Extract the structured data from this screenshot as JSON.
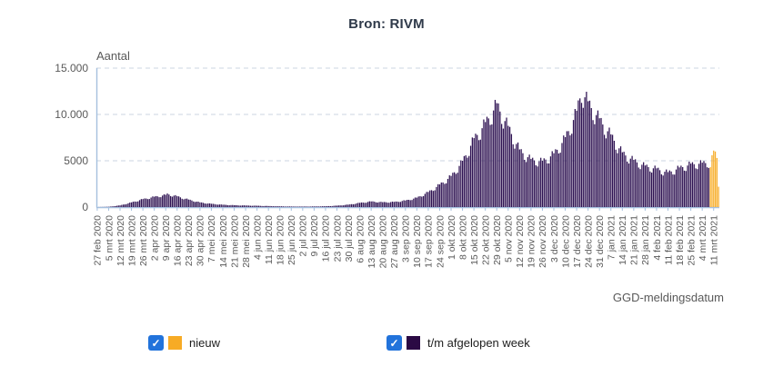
{
  "chart_data": {
    "type": "bar",
    "title": "Bron: RIVM",
    "ylabel": "Aantal",
    "xlabel": "GGD-meldingsdatum",
    "ylim": [
      0,
      15000
    ],
    "y_ticks": [
      0,
      5000,
      10000,
      15000
    ],
    "y_tick_labels": [
      "0",
      "5000",
      "10.000",
      "15.000"
    ],
    "x_tick_labels": [
      "27 feb 2020",
      "5 mrt 2020",
      "12 mrt 2020",
      "19 mrt 2020",
      "26 mrt 2020",
      "2 apr 2020",
      "9 apr 2020",
      "16 apr 2020",
      "23 apr 2020",
      "30 apr 2020",
      "7 mei 2020",
      "14 mei 2020",
      "21 mei 2020",
      "28 mei 2020",
      "4 jun 2020",
      "11 jun 2020",
      "18 jun 2020",
      "25 jun 2020",
      "2 jul 2020",
      "9 jul 2020",
      "16 jul 2020",
      "23 jul 2020",
      "30 jul 2020",
      "6 aug 2020",
      "13 aug 2020",
      "20 aug 2020",
      "27 aug 2020",
      "3 sep 2020",
      "10 sep 2020",
      "17 sep 2020",
      "24 sep 2020",
      "1 okt 2020",
      "8 okt 2020",
      "15 okt 2020",
      "22 okt 2020",
      "29 okt 2020",
      "5 nov 2020",
      "12 nov 2020",
      "19 nov 2020",
      "26 nov 2020",
      "3 dec 2020",
      "10 dec 2020",
      "17 dec 2020",
      "24 dec 2020",
      "31 dec 2020",
      "7 jan 2021",
      "14 jan 2021",
      "21 jan 2021",
      "28 jan 2021",
      "4 feb 2021",
      "11 feb 2021",
      "18 feb 2021",
      "25 feb 2021",
      "4 mrt 2021",
      "11 mrt 2021"
    ],
    "days_per_tick": 7,
    "total_days": 382,
    "grid": "horizontal-dashed",
    "legend_position": "bottom",
    "series": [
      {
        "name": "t/m afgelopen week",
        "color": "#2E1252",
        "anchor_points_day_value": [
          [
            0,
            1
          ],
          [
            7,
            30
          ],
          [
            14,
            180
          ],
          [
            21,
            500
          ],
          [
            28,
            850
          ],
          [
            35,
            1100
          ],
          [
            42,
            1300
          ],
          [
            43,
            1400
          ],
          [
            49,
            1150
          ],
          [
            56,
            800
          ],
          [
            63,
            500
          ],
          [
            70,
            350
          ],
          [
            77,
            250
          ],
          [
            84,
            200
          ],
          [
            91,
            170
          ],
          [
            98,
            140
          ],
          [
            105,
            110
          ],
          [
            112,
            80
          ],
          [
            119,
            60
          ],
          [
            126,
            55
          ],
          [
            133,
            65
          ],
          [
            140,
            90
          ],
          [
            147,
            150
          ],
          [
            154,
            260
          ],
          [
            161,
            450
          ],
          [
            168,
            600
          ],
          [
            175,
            520
          ],
          [
            182,
            550
          ],
          [
            189,
            700
          ],
          [
            196,
            1000
          ],
          [
            203,
            1600
          ],
          [
            210,
            2400
          ],
          [
            217,
            3300
          ],
          [
            224,
            4900
          ],
          [
            231,
            7300
          ],
          [
            238,
            9000
          ],
          [
            245,
            11000
          ],
          [
            252,
            8600
          ],
          [
            259,
            6100
          ],
          [
            266,
            5100
          ],
          [
            273,
            4900
          ],
          [
            280,
            5700
          ],
          [
            287,
            7400
          ],
          [
            294,
            10200
          ],
          [
            297,
            12500
          ],
          [
            301,
            11200
          ],
          [
            308,
            9400
          ],
          [
            315,
            7700
          ],
          [
            322,
            5800
          ],
          [
            329,
            5000
          ],
          [
            336,
            4400
          ],
          [
            343,
            4100
          ],
          [
            350,
            3700
          ],
          [
            357,
            4200
          ],
          [
            364,
            4600
          ],
          [
            371,
            4700
          ],
          [
            375,
            4800
          ]
        ],
        "weekday_modulation": [
          1.02,
          1.05,
          1.0,
          0.9,
          0.88,
          1.0,
          1.08
        ]
      },
      {
        "name": "nieuw",
        "color": "#F7AB25",
        "start_day": 376,
        "values": [
          4300,
          5600,
          6100,
          6000,
          5300,
          2200
        ]
      }
    ]
  },
  "legend": {
    "checkmark_glyph": "✓",
    "checkbox_color": "#2273DB",
    "items": [
      {
        "label": "nieuw",
        "checked": true,
        "swatch_color": "#F7AB25"
      },
      {
        "label": "t/m afgelopen week",
        "checked": true,
        "swatch_color": "#2B0A44"
      }
    ]
  },
  "colors": {
    "axis": "#A5C0DF",
    "gridline": "#CBD5E1",
    "tick_text": "#595959",
    "title_text": "#2F3A4A"
  }
}
